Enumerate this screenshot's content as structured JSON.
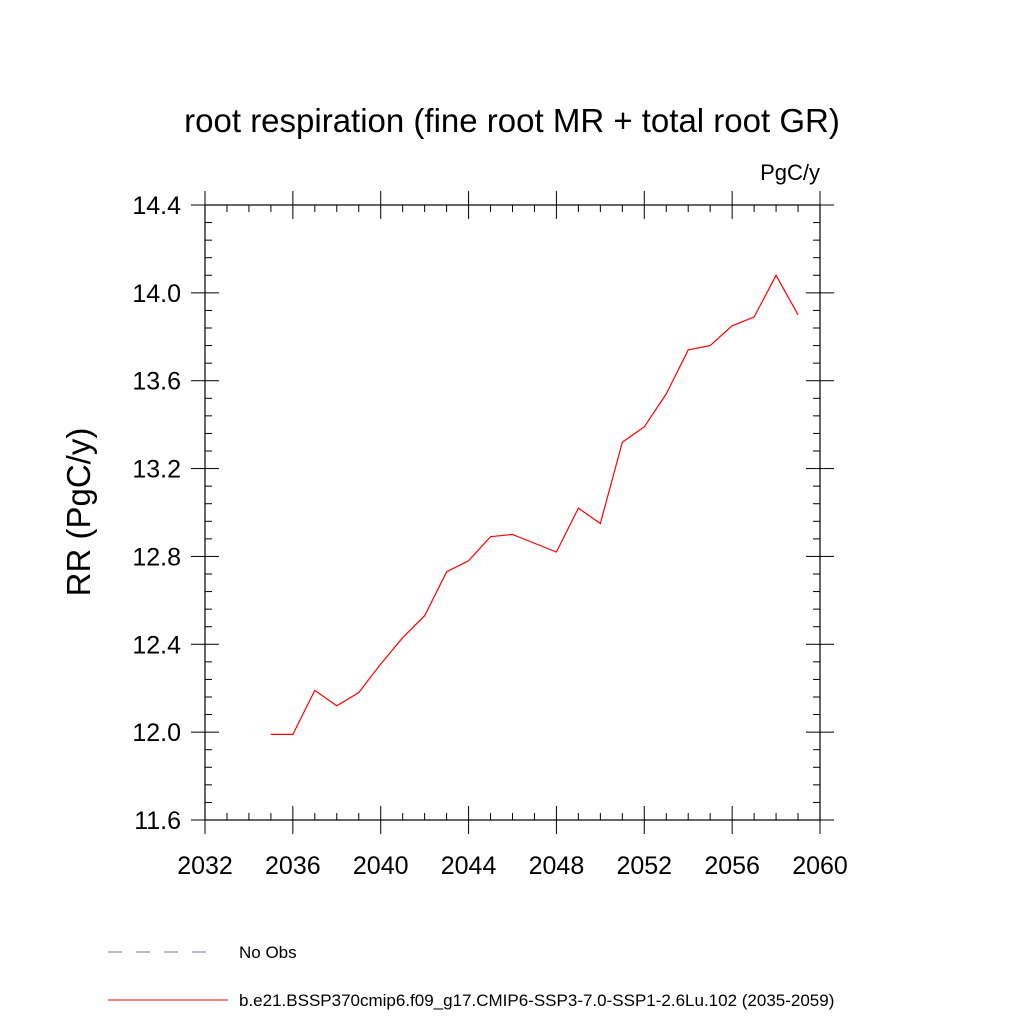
{
  "chart_data": {
    "type": "line",
    "title": "root respiration (fine root MR + total root GR)",
    "units_label": "PgC/y",
    "xlabel": "",
    "ylabel": "RR  (PgC/y)",
    "xlim": [
      2032,
      2060
    ],
    "ylim": [
      11.6,
      14.4
    ],
    "x_ticks": [
      2032,
      2036,
      2040,
      2044,
      2048,
      2052,
      2056,
      2060
    ],
    "x_tick_labels": [
      "2032",
      "2036",
      "2040",
      "2044",
      "2048",
      "2052",
      "2056",
      "2060"
    ],
    "y_ticks": [
      11.6,
      12.0,
      12.4,
      12.8,
      13.2,
      13.6,
      14.0,
      14.4
    ],
    "y_tick_labels": [
      "11.6",
      "12.0",
      "12.4",
      "12.8",
      "13.2",
      "13.6",
      "14.0",
      "14.4"
    ],
    "grid": false,
    "legend_position": "bottom",
    "series": [
      {
        "name": "No Obs",
        "color": "#7b6fb0",
        "dash": true,
        "x": [],
        "y": []
      },
      {
        "name": "b.e21.BSSP370cmip6.f09_g17.CMIP6-SSP3-7.0-SSP1-2.6Lu.102 (2035-2059)",
        "color": "#ff0000",
        "dash": false,
        "x": [
          2035,
          2036,
          2037,
          2038,
          2039,
          2040,
          2041,
          2042,
          2043,
          2044,
          2045,
          2046,
          2047,
          2048,
          2049,
          2050,
          2051,
          2052,
          2053,
          2054,
          2055,
          2056,
          2057,
          2058,
          2059
        ],
        "y": [
          11.99,
          11.99,
          12.19,
          12.12,
          12.18,
          12.31,
          12.43,
          12.53,
          12.73,
          12.78,
          12.89,
          12.9,
          12.86,
          12.82,
          13.02,
          12.95,
          13.32,
          13.39,
          13.54,
          13.74,
          13.76,
          13.85,
          13.89,
          14.08,
          13.9
        ]
      }
    ]
  }
}
